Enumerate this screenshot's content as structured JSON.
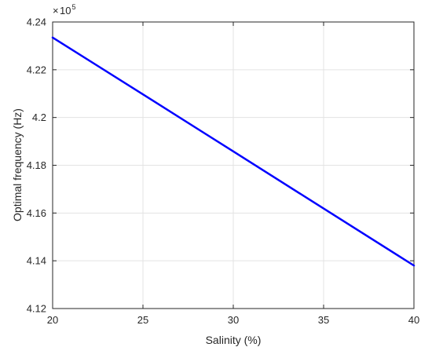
{
  "chart_data": {
    "type": "line",
    "title": "",
    "xlabel": "Salinity (%)",
    "ylabel": "Optimal frequency (Hz)",
    "xlim": [
      20,
      40
    ],
    "ylim": [
      4.12,
      4.24
    ],
    "y_exponent_base": "10",
    "y_exponent_power": "5",
    "x_ticks": [
      20,
      25,
      30,
      35,
      40
    ],
    "x_tick_labels": [
      "20",
      "25",
      "30",
      "35",
      "40"
    ],
    "y_ticks": [
      4.12,
      4.14,
      4.16,
      4.18,
      4.2,
      4.22,
      4.24
    ],
    "y_tick_labels": [
      "4.12",
      "4.14",
      "4.16",
      "4.18",
      "4.2",
      "4.22",
      "4.24"
    ],
    "grid": true,
    "legend": "none",
    "series": [
      {
        "x": [
          20,
          25,
          30,
          35,
          40
        ],
        "y": [
          4.2335,
          4.2097,
          4.1858,
          4.1619,
          4.138
        ],
        "color": "#0000ff"
      }
    ]
  }
}
